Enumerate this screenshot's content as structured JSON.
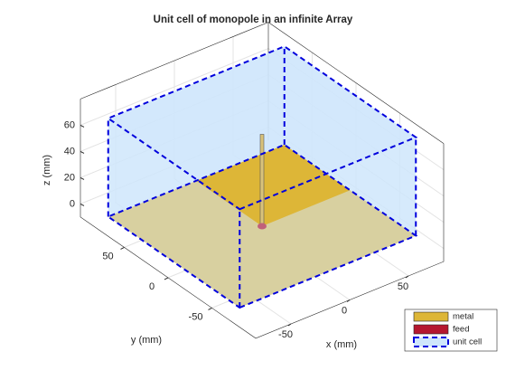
{
  "chart_data": {
    "type": "3d",
    "title": "Unit cell of monopole in an infinite Array",
    "xlabel": "x (mm)",
    "ylabel": "y (mm)",
    "zlabel": "z (mm)",
    "xlim": [
      -80,
      80
    ],
    "ylim": [
      -100,
      100
    ],
    "zlim": [
      -10,
      80
    ],
    "xticks": [
      -50,
      0,
      50
    ],
    "yticks": [
      -50,
      0,
      50
    ],
    "zticks": [
      0,
      20,
      40,
      60
    ],
    "grid": true,
    "legend_position": "southeast",
    "legend": [
      {
        "name": "metal",
        "color": "#ddb637"
      },
      {
        "name": "feed",
        "color": "#b5172f"
      },
      {
        "name": "unit cell",
        "color": "#0000dd"
      }
    ]
  }
}
